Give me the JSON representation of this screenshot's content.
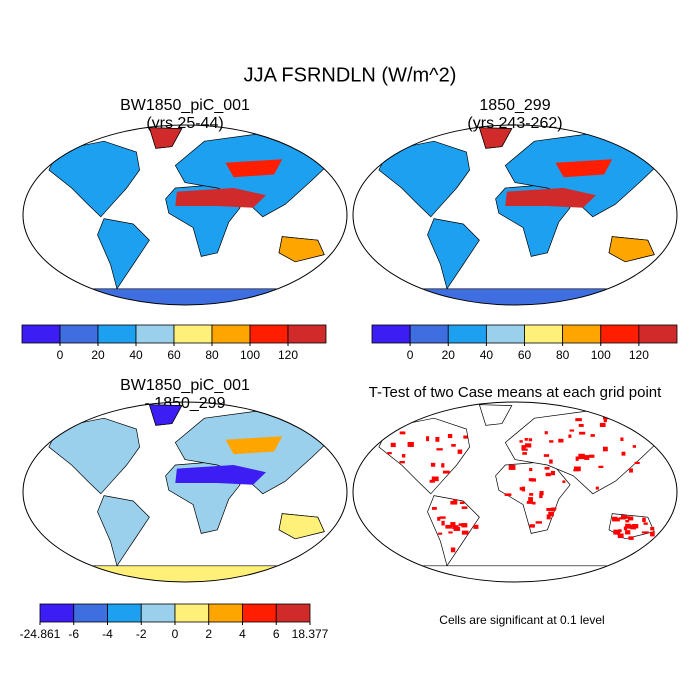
{
  "title": "JJA FSRNDLN (W/m^2)",
  "panels": [
    {
      "title": "BW1850_piC_001",
      "subtitle": "(yrs 25-44)"
    },
    {
      "title": "1850_299",
      "subtitle": "(yrs 243-262)"
    },
    {
      "title": "BW1850_piC_001",
      "subtitle": "- 1850_299"
    },
    {
      "title": "T-Test of two Case means at each grid point"
    }
  ],
  "colorbars": [
    {
      "colors": [
        "#3c1ef5",
        "#3f6ee0",
        "#1ea0f0",
        "#9ad0ec",
        "#fff07a",
        "#ffa500",
        "#ff1e00",
        "#d02a2a"
      ],
      "lim": [
        -20,
        140
      ],
      "ticks": [
        0,
        20,
        40,
        60,
        80,
        100,
        120
      ]
    },
    {
      "colors": [
        "#3c1ef5",
        "#3f6ee0",
        "#1ea0f0",
        "#9ad0ec",
        "#fff07a",
        "#ffa500",
        "#ff1e00",
        "#d02a2a"
      ],
      "lim": [
        -20,
        140
      ],
      "ticks": [
        0,
        20,
        40,
        60,
        80,
        100,
        120
      ]
    },
    {
      "colors": [
        "#3c1ef5",
        "#3f6ee0",
        "#1ea0f0",
        "#9ad0ec",
        "#fff07a",
        "#ffa500",
        "#ff1e00",
        "#d02a2a"
      ],
      "ticks": [
        -24.861,
        -6,
        -4,
        -2,
        0,
        2,
        4,
        6,
        18.377
      ]
    }
  ],
  "note": "Cells are significant at 0.1 level"
}
